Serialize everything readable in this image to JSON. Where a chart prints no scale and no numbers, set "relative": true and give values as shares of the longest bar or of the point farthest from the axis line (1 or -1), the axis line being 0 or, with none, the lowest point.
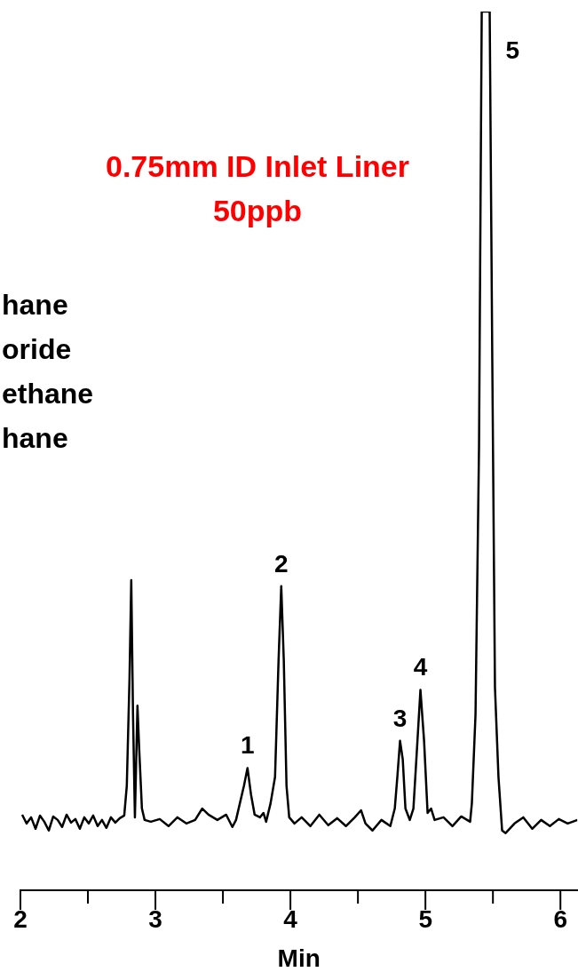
{
  "chart_data": {
    "type": "line",
    "title": "0.75mm ID Inlet Liner",
    "subtitle": "50ppb",
    "xlabel": "Min",
    "relative": true,
    "annotations": [
      "hane",
      "oride",
      "ethane",
      "hane",
      {
        "text": "1",
        "x": 3.682,
        "y": 0.139
      },
      {
        "text": "2",
        "x": 3.932,
        "y": 0.346
      },
      {
        "text": "3",
        "x": 4.812,
        "y": 0.17
      },
      {
        "text": "4",
        "x": 4.963,
        "y": 0.228
      },
      {
        "text": "5",
        "x": 5.476,
        "y": 1
      }
    ],
    "xlim": [
      2,
      6.126
    ],
    "xticks": [
      2,
      {
        "value": 2.5,
        "label": null
      },
      3,
      {
        "value": 3.5,
        "label": null
      },
      4,
      {
        "value": 4.5,
        "label": null
      },
      5,
      {
        "value": 5.5,
        "label": null
      },
      6
    ],
    "x": [
      2.013,
      2.046,
      2.079,
      2.112,
      2.145,
      2.177,
      2.21,
      2.243,
      2.276,
      2.309,
      2.342,
      2.375,
      2.407,
      2.44,
      2.473,
      2.506,
      2.539,
      2.572,
      2.604,
      2.637,
      2.67,
      2.703,
      2.736,
      2.769,
      2.788,
      2.808,
      2.821,
      2.834,
      2.848,
      2.867,
      2.88,
      2.9,
      2.92,
      2.966,
      3.032,
      3.097,
      3.163,
      3.229,
      3.294,
      3.347,
      3.393,
      3.459,
      3.524,
      3.57,
      3.597,
      3.656,
      3.682,
      3.708,
      3.735,
      3.774,
      3.8,
      3.82,
      3.853,
      3.886,
      3.912,
      3.932,
      3.951,
      3.971,
      3.991,
      4.03,
      4.083,
      4.148,
      4.214,
      4.28,
      4.346,
      4.411,
      4.477,
      4.523,
      4.556,
      4.608,
      4.674,
      4.74,
      4.773,
      4.792,
      4.812,
      4.832,
      4.852,
      4.884,
      4.911,
      4.937,
      4.963,
      4.99,
      5.016,
      5.042,
      5.068,
      5.134,
      5.2,
      5.265,
      5.331,
      5.344,
      5.371,
      5.397,
      5.417,
      5.476,
      5.495,
      5.515,
      5.541,
      5.568,
      5.594,
      5.66,
      5.725,
      5.791,
      5.857,
      5.922,
      5.988,
      6.054,
      6.126
    ],
    "series": [
      {
        "color": "#000000",
        "values": [
          0.086,
          0.076,
          0.083,
          0.07,
          0.085,
          0.078,
          0.068,
          0.084,
          0.08,
          0.072,
          0.086,
          0.077,
          0.081,
          0.07,
          0.083,
          0.076,
          0.085,
          0.073,
          0.08,
          0.071,
          0.083,
          0.077,
          0.082,
          0.085,
          0.119,
          0.241,
          0.353,
          0.2,
          0.083,
          0.21,
          0.16,
          0.093,
          0.08,
          0.078,
          0.081,
          0.073,
          0.083,
          0.076,
          0.08,
          0.093,
          0.086,
          0.08,
          0.086,
          0.072,
          0.08,
          0.119,
          0.139,
          0.109,
          0.086,
          0.083,
          0.088,
          0.078,
          0.099,
          0.129,
          0.261,
          0.346,
          0.261,
          0.119,
          0.083,
          0.076,
          0.083,
          0.073,
          0.086,
          0.074,
          0.082,
          0.073,
          0.083,
          0.091,
          0.076,
          0.068,
          0.08,
          0.073,
          0.093,
          0.129,
          0.17,
          0.149,
          0.093,
          0.08,
          0.093,
          0.16,
          0.228,
          0.17,
          0.088,
          0.093,
          0.08,
          0.083,
          0.073,
          0.084,
          0.078,
          0.099,
          0.2,
          0.505,
          1,
          1,
          0.607,
          0.231,
          0.129,
          0.068,
          0.065,
          0.076,
          0.083,
          0.07,
          0.08,
          0.073,
          0.081,
          0.076,
          0.08
        ]
      }
    ]
  }
}
